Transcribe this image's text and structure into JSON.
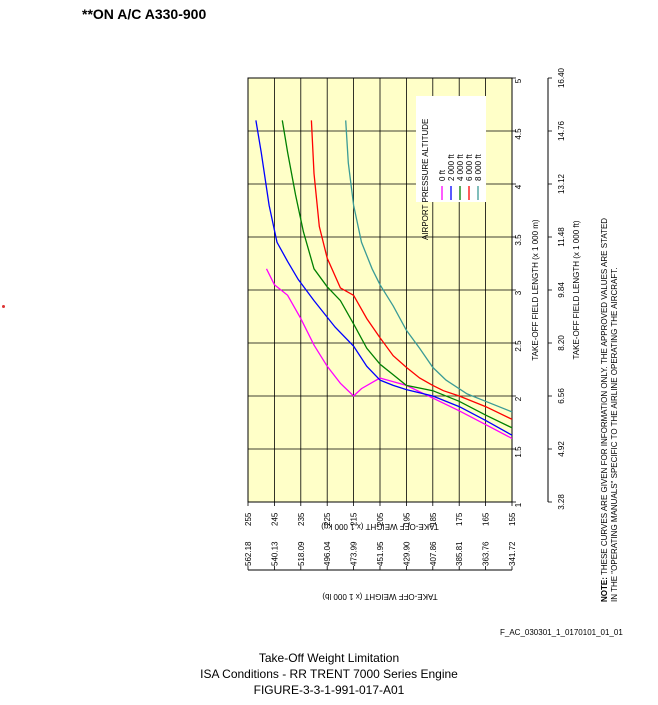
{
  "header": "**ON A/C A330-900",
  "ref_code": "F_AC_030301_1_0170101_01_01",
  "caption": {
    "line1": "Take-Off Weight Limitation",
    "line2": "ISA Conditions - RR TRENT 7000 Series Engine",
    "line3": "FIGURE-3-3-1-991-017-A01"
  },
  "note": {
    "label": "NOTE:",
    "line1": "THESE CURVES ARE GIVEN FOR INFORMATION ONLY. THE APPROVED VALUES ARE STATED",
    "line2": "IN THE \"OPERATING MANUALS\" SPECIFIC TO THE AIRLINE OPERATING THE AIRCRAFT."
  },
  "colors": {
    "plot_bg": "#ffffc8",
    "grid": "#000000"
  },
  "chart_data": {
    "type": "line",
    "title": "",
    "xlabel": "TAKE-OFF WEIGHT (x 1 000 kg)",
    "xlabel_secondary": "TAKE-OFF WEIGHT (x 1 000 lb)",
    "ylabel": "TAKE-OFF FIELD LENGTH (x 1 000 m)",
    "ylabel_secondary": "TAKE-OFF FIELD LENGTH (x 1 000 ft)",
    "xlim": [
      155,
      255
    ],
    "ylim": [
      1,
      5
    ],
    "x_ticks": [
      "255",
      "245",
      "235",
      "225",
      "215",
      "205",
      "195",
      "185",
      "175",
      "165",
      "155"
    ],
    "x_ticks_lb": [
      "562.18",
      "540.13",
      "518.09",
      "496.04",
      "473.99",
      "451.95",
      "429.90",
      "407.86",
      "385.81",
      "363.76",
      "341.72"
    ],
    "y_ticks": [
      "1",
      "1.5",
      "2",
      "2.5",
      "3",
      "3.5",
      "4",
      "4.5",
      "5"
    ],
    "y_ticks_ft": [
      "3.28",
      "4.92",
      "6.56",
      "8.20",
      "9.84",
      "11.48",
      "13.12",
      "14.76",
      "16.40"
    ],
    "grid": true,
    "legend_title": "AIRPORT PRESSURE ALTITUDE",
    "legend_position": "top-right",
    "series": [
      {
        "name": "0 ft",
        "color": "#ff00ff",
        "points": [
          [
            155,
            1.6
          ],
          [
            165,
            1.73
          ],
          [
            175,
            1.86
          ],
          [
            185,
            1.98
          ],
          [
            195,
            2.1
          ],
          [
            205,
            2.17
          ],
          [
            212,
            2.07
          ],
          [
            215,
            2.0
          ],
          [
            220,
            2.12
          ],
          [
            225,
            2.28
          ],
          [
            230,
            2.48
          ],
          [
            235,
            2.73
          ],
          [
            240,
            2.95
          ],
          [
            245,
            3.05
          ],
          [
            248,
            3.2
          ]
        ]
      },
      {
        "name": "2 000 ft",
        "color": "#0000ff",
        "points": [
          [
            155,
            1.63
          ],
          [
            165,
            1.77
          ],
          [
            175,
            1.9
          ],
          [
            185,
            2.0
          ],
          [
            195,
            2.06
          ],
          [
            200,
            2.1
          ],
          [
            205,
            2.15
          ],
          [
            210,
            2.28
          ],
          [
            215,
            2.47
          ],
          [
            222,
            2.65
          ],
          [
            230,
            2.9
          ],
          [
            236,
            3.1
          ],
          [
            240,
            3.27
          ],
          [
            244,
            3.45
          ],
          [
            247,
            3.8
          ],
          [
            250,
            4.3
          ],
          [
            252,
            4.6
          ]
        ]
      },
      {
        "name": "4 000 ft",
        "color": "#008000",
        "points": [
          [
            155,
            1.7
          ],
          [
            165,
            1.82
          ],
          [
            175,
            1.95
          ],
          [
            185,
            2.05
          ],
          [
            195,
            2.1
          ],
          [
            200,
            2.2
          ],
          [
            205,
            2.3
          ],
          [
            210,
            2.45
          ],
          [
            215,
            2.68
          ],
          [
            220,
            2.9
          ],
          [
            225,
            3.03
          ],
          [
            230,
            3.2
          ],
          [
            234,
            3.55
          ],
          [
            237,
            3.9
          ],
          [
            240,
            4.3
          ],
          [
            242,
            4.6
          ]
        ]
      },
      {
        "name": "6 000 ft",
        "color": "#ff0000",
        "points": [
          [
            155,
            1.78
          ],
          [
            165,
            1.9
          ],
          [
            175,
            2.0
          ],
          [
            181,
            2.05
          ],
          [
            185,
            2.1
          ],
          [
            190,
            2.17
          ],
          [
            195,
            2.27
          ],
          [
            200,
            2.38
          ],
          [
            205,
            2.55
          ],
          [
            210,
            2.73
          ],
          [
            215,
            2.95
          ],
          [
            220,
            3.02
          ],
          [
            225,
            3.3
          ],
          [
            228,
            3.6
          ],
          [
            230,
            4.1
          ],
          [
            231,
            4.6
          ]
        ]
      },
      {
        "name": "8 000 ft",
        "color": "#3b9b96",
        "points": [
          [
            155,
            1.85
          ],
          [
            165,
            1.95
          ],
          [
            172,
            2.02
          ],
          [
            180,
            2.15
          ],
          [
            185,
            2.27
          ],
          [
            190,
            2.45
          ],
          [
            195,
            2.62
          ],
          [
            200,
            2.85
          ],
          [
            205,
            3.05
          ],
          [
            208,
            3.2
          ],
          [
            212,
            3.45
          ],
          [
            215,
            3.8
          ],
          [
            217,
            4.2
          ],
          [
            218,
            4.6
          ]
        ]
      }
    ]
  }
}
